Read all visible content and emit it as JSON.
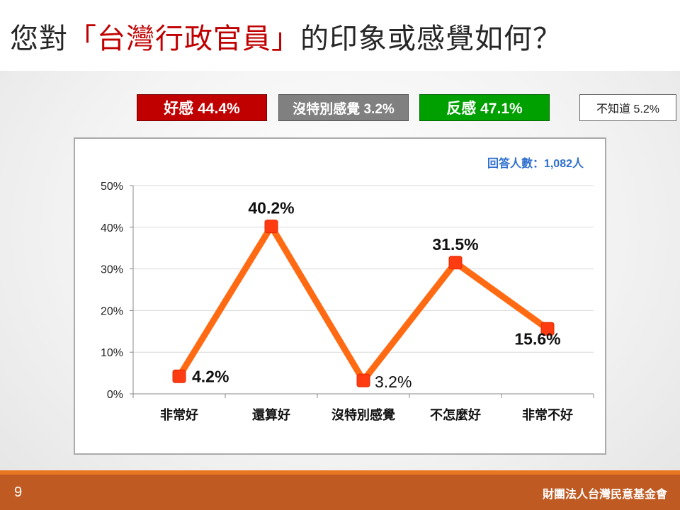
{
  "title": {
    "prefix": "您對",
    "highlight": "「台灣行政官員」",
    "suffix": "的印象或感覺如何？"
  },
  "summary": {
    "favorable": "好感 44.4%",
    "neutral": "沒特別感覺 3.2%",
    "unfavorable": "反感 47.1%",
    "dont_know": "不知道 5.2%"
  },
  "colors": {
    "favorable": "#c00000",
    "neutral": "#808080",
    "unfavorable": "#00a000",
    "line": "#ff6a13",
    "marker": "#ff3b12",
    "respondents_text": "#2f6fcf"
  },
  "chart_data": {
    "type": "line",
    "categories": [
      "非常好",
      "還算好",
      "沒特別感覺",
      "不怎麼好",
      "非常不好"
    ],
    "values": [
      4.2,
      40.2,
      3.2,
      31.5,
      15.6
    ],
    "data_labels": [
      "4.2%",
      "40.2%",
      "3.2%",
      "31.5%",
      "15.6%"
    ],
    "ylim": [
      0,
      50
    ],
    "yticks": [
      "0%",
      "10%",
      "20%",
      "30%",
      "40%",
      "50%"
    ],
    "grid": true,
    "legend": "none",
    "annotation": "回答人數：1,082人"
  },
  "footer": {
    "page_number": "9",
    "organization": "財團法人台灣民意基金會"
  }
}
